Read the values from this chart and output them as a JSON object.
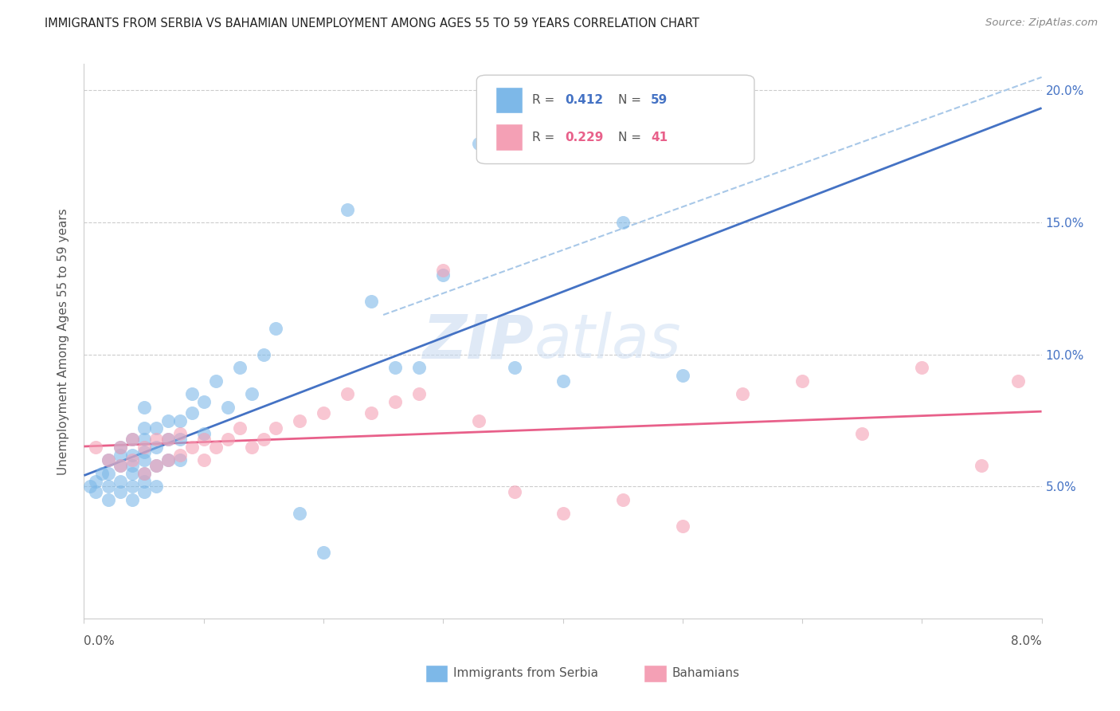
{
  "title": "IMMIGRANTS FROM SERBIA VS BAHAMIAN UNEMPLOYMENT AMONG AGES 55 TO 59 YEARS CORRELATION CHART",
  "source": "Source: ZipAtlas.com",
  "ylabel": "Unemployment Among Ages 55 to 59 years",
  "xlim": [
    0.0,
    0.08
  ],
  "ylim": [
    0.0,
    0.21
  ],
  "yticks": [
    0.05,
    0.1,
    0.15,
    0.2
  ],
  "ytick_labels": [
    "5.0%",
    "10.0%",
    "15.0%",
    "20.0%"
  ],
  "color_blue": "#7db8e8",
  "color_pink": "#f4a0b5",
  "color_blue_line": "#4472c4",
  "color_pink_line": "#e8608a",
  "color_dashed": "#a8c8e8",
  "watermark_zip": "ZIP",
  "watermark_atlas": "atlas",
  "serbia_x": [
    0.0005,
    0.001,
    0.001,
    0.0015,
    0.002,
    0.002,
    0.002,
    0.002,
    0.003,
    0.003,
    0.003,
    0.003,
    0.003,
    0.004,
    0.004,
    0.004,
    0.004,
    0.004,
    0.004,
    0.005,
    0.005,
    0.005,
    0.005,
    0.005,
    0.005,
    0.005,
    0.005,
    0.006,
    0.006,
    0.006,
    0.006,
    0.007,
    0.007,
    0.007,
    0.008,
    0.008,
    0.008,
    0.009,
    0.009,
    0.01,
    0.01,
    0.011,
    0.012,
    0.013,
    0.014,
    0.015,
    0.016,
    0.018,
    0.02,
    0.022,
    0.024,
    0.026,
    0.028,
    0.03,
    0.033,
    0.036,
    0.04,
    0.045,
    0.05
  ],
  "serbia_y": [
    0.05,
    0.048,
    0.052,
    0.055,
    0.045,
    0.05,
    0.055,
    0.06,
    0.048,
    0.052,
    0.058,
    0.062,
    0.065,
    0.045,
    0.05,
    0.055,
    0.058,
    0.062,
    0.068,
    0.048,
    0.052,
    0.055,
    0.06,
    0.063,
    0.068,
    0.072,
    0.08,
    0.05,
    0.058,
    0.065,
    0.072,
    0.06,
    0.068,
    0.075,
    0.06,
    0.068,
    0.075,
    0.078,
    0.085,
    0.07,
    0.082,
    0.09,
    0.08,
    0.095,
    0.085,
    0.1,
    0.11,
    0.04,
    0.025,
    0.155,
    0.12,
    0.095,
    0.095,
    0.13,
    0.18,
    0.095,
    0.09,
    0.15,
    0.092
  ],
  "bahamas_x": [
    0.001,
    0.002,
    0.003,
    0.003,
    0.004,
    0.004,
    0.005,
    0.005,
    0.006,
    0.006,
    0.007,
    0.007,
    0.008,
    0.008,
    0.009,
    0.01,
    0.01,
    0.011,
    0.012,
    0.013,
    0.014,
    0.015,
    0.016,
    0.018,
    0.02,
    0.022,
    0.024,
    0.026,
    0.028,
    0.03,
    0.033,
    0.036,
    0.04,
    0.045,
    0.05,
    0.055,
    0.06,
    0.065,
    0.07,
    0.075,
    0.078
  ],
  "bahamas_y": [
    0.065,
    0.06,
    0.058,
    0.065,
    0.06,
    0.068,
    0.055,
    0.065,
    0.058,
    0.068,
    0.06,
    0.068,
    0.062,
    0.07,
    0.065,
    0.06,
    0.068,
    0.065,
    0.068,
    0.072,
    0.065,
    0.068,
    0.072,
    0.075,
    0.078,
    0.085,
    0.078,
    0.082,
    0.085,
    0.132,
    0.075,
    0.048,
    0.04,
    0.045,
    0.035,
    0.085,
    0.09,
    0.07,
    0.095,
    0.058,
    0.09
  ],
  "dashed_line_x": [
    0.025,
    0.08
  ],
  "dashed_line_y": [
    0.115,
    0.205
  ]
}
